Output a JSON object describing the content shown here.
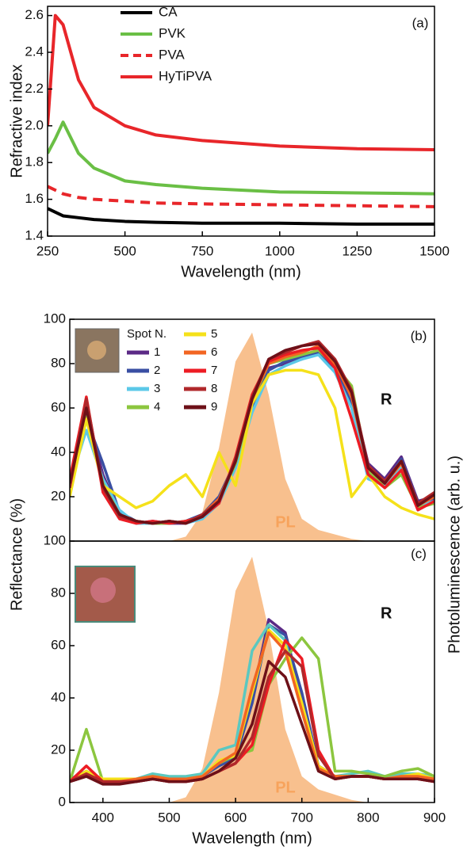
{
  "chart_data": [
    {
      "type": "line",
      "panel_label": "(a)",
      "x_label": "Wavelength (nm)",
      "y_label": "Refractive index",
      "x": [
        250,
        275,
        300,
        350,
        400,
        500,
        600,
        750,
        1000,
        1250,
        1500
      ],
      "xlim": [
        250,
        1500
      ],
      "xticks": [
        250,
        500,
        750,
        1000,
        1250,
        1500
      ],
      "ylim": [
        1.4,
        2.65
      ],
      "yticks": [
        1.4,
        1.6,
        1.8,
        {
          "value": 2,
          "label": "2.0"
        },
        2.2,
        2.4,
        2.6
      ],
      "legend": "upper left",
      "series": [
        {
          "name": "CA",
          "color": "#000000",
          "values": [
            1.55,
            1.53,
            1.51,
            1.5,
            1.49,
            1.48,
            1.475,
            1.47,
            1.47,
            1.465,
            1.465
          ]
        },
        {
          "name": "PVK",
          "color": "#6abf45",
          "values": [
            1.85,
            1.93,
            2.02,
            1.85,
            1.77,
            1.7,
            1.68,
            1.66,
            1.64,
            1.635,
            1.63
          ]
        },
        {
          "name": "PVA",
          "color": "#e8262a",
          "dash": true,
          "values": [
            1.67,
            1.65,
            1.63,
            1.61,
            1.6,
            1.59,
            1.58,
            1.575,
            1.57,
            1.565,
            1.56
          ]
        },
        {
          "name": "HyTiPVA",
          "color": "#e8262a",
          "values": [
            2.0,
            2.6,
            2.55,
            2.25,
            2.1,
            2.0,
            1.95,
            1.92,
            1.89,
            1.875,
            1.87
          ]
        }
      ]
    },
    {
      "type": "line",
      "panel_label": "(b)",
      "r_label": "R",
      "pl_label": "PL",
      "legend_title": "Spot N.",
      "y_label": "Reflectance (%)",
      "y2_label": "Photoluminescence (arb. u.)",
      "x": [
        350,
        375,
        400,
        425,
        450,
        475,
        500,
        525,
        550,
        575,
        600,
        625,
        650,
        675,
        700,
        725,
        750,
        775,
        800,
        825,
        850,
        875,
        900
      ],
      "xlim": [
        350,
        900
      ],
      "ylim": [
        0,
        100
      ],
      "yticks": [
        20,
        40,
        60,
        80,
        100
      ],
      "pl": {
        "color": "#f7b57a",
        "values": [
          0,
          0,
          0,
          0,
          0,
          0,
          0,
          2,
          13,
          42,
          81,
          94,
          66,
          28,
          10,
          5,
          3,
          1,
          0,
          0,
          0,
          0,
          0
        ]
      },
      "series": [
        {
          "name": "1",
          "color": "#5b2a86",
          "values": [
            22,
            58,
            30,
            12,
            8,
            9,
            8,
            8,
            11,
            18,
            34,
            62,
            78,
            80,
            82,
            86,
            80,
            66,
            35,
            28,
            38,
            18,
            20
          ]
        },
        {
          "name": "2",
          "color": "#3a4fa3",
          "values": [
            24,
            55,
            35,
            13,
            9,
            8,
            8,
            9,
            12,
            20,
            36,
            60,
            77,
            81,
            83,
            85,
            78,
            62,
            30,
            26,
            37,
            17,
            19
          ]
        },
        {
          "name": "3",
          "color": "#5bc8e8",
          "values": [
            26,
            50,
            28,
            14,
            8,
            8,
            9,
            8,
            10,
            17,
            33,
            58,
            75,
            79,
            82,
            84,
            76,
            60,
            28,
            25,
            33,
            16,
            18
          ]
        },
        {
          "name": "4",
          "color": "#8cc63f",
          "values": [
            23,
            56,
            26,
            12,
            9,
            8,
            8,
            9,
            11,
            18,
            35,
            63,
            80,
            82,
            84,
            86,
            79,
            70,
            32,
            24,
            30,
            15,
            17
          ]
        },
        {
          "name": "5",
          "color": "#f5e11a",
          "values": [
            20,
            55,
            25,
            20,
            15,
            18,
            25,
            30,
            20,
            40,
            25,
            62,
            75,
            77,
            77,
            75,
            60,
            20,
            30,
            20,
            15,
            12,
            10
          ]
        },
        {
          "name": "6",
          "color": "#f26522",
          "values": [
            25,
            62,
            24,
            11,
            9,
            8,
            9,
            8,
            12,
            19,
            36,
            64,
            80,
            83,
            85,
            88,
            80,
            65,
            33,
            26,
            35,
            16,
            20
          ]
        },
        {
          "name": "7",
          "color": "#ed1c24",
          "values": [
            28,
            65,
            22,
            10,
            8,
            9,
            8,
            9,
            11,
            17,
            38,
            66,
            81,
            84,
            86,
            87,
            78,
            55,
            30,
            24,
            32,
            14,
            18
          ]
        },
        {
          "name": "8",
          "color": "#b0282b",
          "values": [
            24,
            64,
            24,
            11,
            9,
            8,
            9,
            8,
            12,
            18,
            37,
            65,
            82,
            85,
            88,
            90,
            82,
            68,
            34,
            27,
            36,
            17,
            22
          ]
        },
        {
          "name": "9",
          "color": "#6d1018",
          "values": [
            26,
            60,
            25,
            12,
            9,
            8,
            9,
            8,
            11,
            18,
            36,
            64,
            82,
            86,
            88,
            89,
            81,
            67,
            33,
            26,
            36,
            16,
            21
          ]
        }
      ]
    },
    {
      "type": "line",
      "panel_label": "(c)",
      "r_label": "R",
      "pl_label": "PL",
      "x_label": "Wavelength (nm)",
      "x": [
        350,
        375,
        400,
        425,
        450,
        475,
        500,
        525,
        550,
        575,
        600,
        625,
        650,
        675,
        700,
        725,
        750,
        775,
        800,
        825,
        850,
        875,
        900
      ],
      "xlim": [
        350,
        900
      ],
      "xticks": [
        400,
        500,
        600,
        700,
        800,
        900
      ],
      "ylim": [
        0,
        100
      ],
      "yticks": [
        0,
        20,
        40,
        60,
        80,
        100
      ],
      "pl": {
        "color": "#f7b57a",
        "values": [
          0,
          0,
          0,
          0,
          0,
          0,
          0,
          2,
          13,
          42,
          81,
          94,
          66,
          28,
          10,
          5,
          3,
          1,
          0,
          0,
          0,
          0,
          0
        ]
      },
      "series": [
        {
          "color": "#5b2a86",
          "values": [
            8,
            10,
            8,
            8,
            8,
            10,
            9,
            9,
            10,
            15,
            18,
            40,
            70,
            65,
            40,
            14,
            10,
            10,
            10,
            9,
            10,
            10,
            9
          ]
        },
        {
          "color": "#3a4fa3",
          "values": [
            8,
            10,
            8,
            8,
            8,
            10,
            9,
            9,
            10,
            14,
            17,
            38,
            68,
            64,
            42,
            14,
            10,
            10,
            10,
            9,
            10,
            10,
            9
          ]
        },
        {
          "color": "#5bc8c0",
          "values": [
            9,
            12,
            8,
            8,
            9,
            11,
            10,
            10,
            11,
            20,
            22,
            58,
            68,
            62,
            35,
            13,
            10,
            11,
            12,
            10,
            11,
            11,
            10
          ]
        },
        {
          "color": "#8cc63f",
          "values": [
            8,
            28,
            8,
            8,
            8,
            10,
            9,
            9,
            10,
            15,
            18,
            20,
            45,
            55,
            63,
            55,
            12,
            12,
            11,
            10,
            12,
            13,
            10
          ]
        },
        {
          "color": "#f5e11a",
          "values": [
            8,
            12,
            9,
            9,
            9,
            10,
            9,
            9,
            10,
            16,
            18,
            42,
            66,
            60,
            38,
            14,
            10,
            10,
            10,
            9,
            10,
            11,
            9
          ]
        },
        {
          "color": "#f26522",
          "values": [
            8,
            10,
            8,
            8,
            9,
            10,
            9,
            9,
            10,
            15,
            19,
            44,
            65,
            58,
            35,
            13,
            10,
            10,
            10,
            9,
            10,
            10,
            9
          ]
        },
        {
          "color": "#ed1c24",
          "values": [
            8,
            14,
            8,
            8,
            8,
            9,
            8,
            8,
            9,
            12,
            15,
            22,
            45,
            62,
            55,
            20,
            9,
            10,
            10,
            9,
            9,
            9,
            8
          ]
        },
        {
          "color": "#b0282b",
          "values": [
            8,
            11,
            8,
            8,
            8,
            9,
            8,
            8,
            9,
            12,
            15,
            25,
            48,
            58,
            52,
            18,
            9,
            10,
            10,
            9,
            9,
            9,
            8
          ]
        },
        {
          "color": "#6d1018",
          "values": [
            8,
            10,
            7,
            7,
            8,
            9,
            8,
            8,
            9,
            12,
            17,
            30,
            54,
            48,
            30,
            12,
            9,
            10,
            10,
            9,
            9,
            9,
            8
          ]
        }
      ]
    }
  ]
}
